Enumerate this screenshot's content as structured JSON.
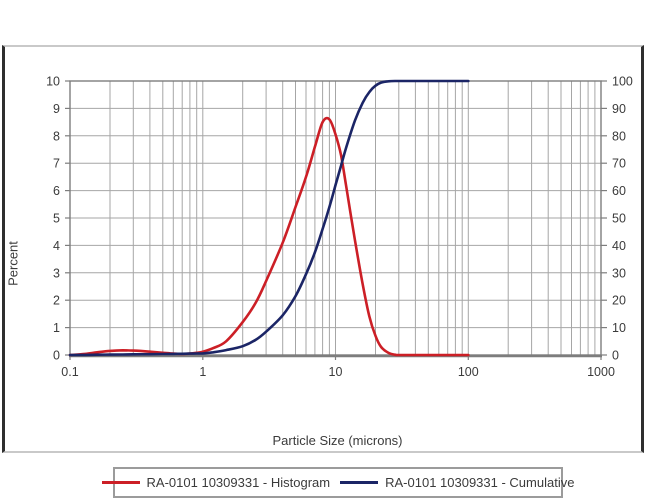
{
  "page": {
    "background": "#ffffff",
    "frame_side_border_color": "#2e2e2e",
    "frame_top_bottom_border_color": "#c9c9c9"
  },
  "chart_data": {
    "type": "line",
    "title": "",
    "xlabel": "Particle Size (microns)",
    "ylabel_left": "Percent",
    "x_scale": "log",
    "xlim": [
      0.1,
      1000
    ],
    "x_ticks": [
      0.1,
      1,
      10,
      100,
      1000
    ],
    "x_tick_labels": [
      "0.1",
      "1",
      "10",
      "100",
      "1000"
    ],
    "ylim_left": [
      0,
      10
    ],
    "y_ticks_left": [
      0,
      1,
      2,
      3,
      4,
      5,
      6,
      7,
      8,
      9,
      10
    ],
    "ylim_right": [
      0,
      100
    ],
    "y_ticks_right": [
      0,
      10,
      20,
      30,
      40,
      50,
      60,
      70,
      80,
      90,
      100
    ],
    "grid": true,
    "grid_color": "#a6a6a6",
    "border_color": "#7d7d7d",
    "legend_position": "bottom",
    "x": [
      0.1,
      0.13,
      0.16,
      0.2,
      0.25,
      0.3,
      0.4,
      0.5,
      0.6,
      0.7,
      0.8,
      0.9,
      1.0,
      1.2,
      1.5,
      2.0,
      2.5,
      3.0,
      4.0,
      5.0,
      6.0,
      7.0,
      8.0,
      9.0,
      10,
      11,
      12,
      14,
      16,
      18,
      20,
      22,
      25,
      28,
      30,
      40,
      60,
      100
    ],
    "series": [
      {
        "name": "RA-0101 10309331 - Histogram",
        "color": "#cc1f26",
        "axis": "left",
        "values": [
          0.0,
          0.04,
          0.1,
          0.15,
          0.17,
          0.16,
          0.12,
          0.08,
          0.05,
          0.04,
          0.05,
          0.08,
          0.12,
          0.25,
          0.5,
          1.2,
          1.9,
          2.7,
          4.1,
          5.4,
          6.5,
          7.6,
          8.5,
          8.6,
          8.05,
          7.3,
          6.2,
          4.2,
          2.6,
          1.4,
          0.7,
          0.3,
          0.08,
          0.01,
          0.0,
          0.0,
          0.0,
          0.0
        ]
      },
      {
        "name": "RA-0101 10309331 - Cumulative",
        "color": "#1b2566",
        "axis": "right",
        "values": [
          0.0,
          0.05,
          0.1,
          0.15,
          0.2,
          0.25,
          0.3,
          0.35,
          0.4,
          0.45,
          0.5,
          0.55,
          0.6,
          1.0,
          1.8,
          3.2,
          5.5,
          8.5,
          14.5,
          21.5,
          29.5,
          37.5,
          46.0,
          54.0,
          62.0,
          69.0,
          75.5,
          85.5,
          92.0,
          96.0,
          98.3,
          99.4,
          99.9,
          100.0,
          100.0,
          100.0,
          100.0,
          100.0
        ]
      }
    ]
  }
}
